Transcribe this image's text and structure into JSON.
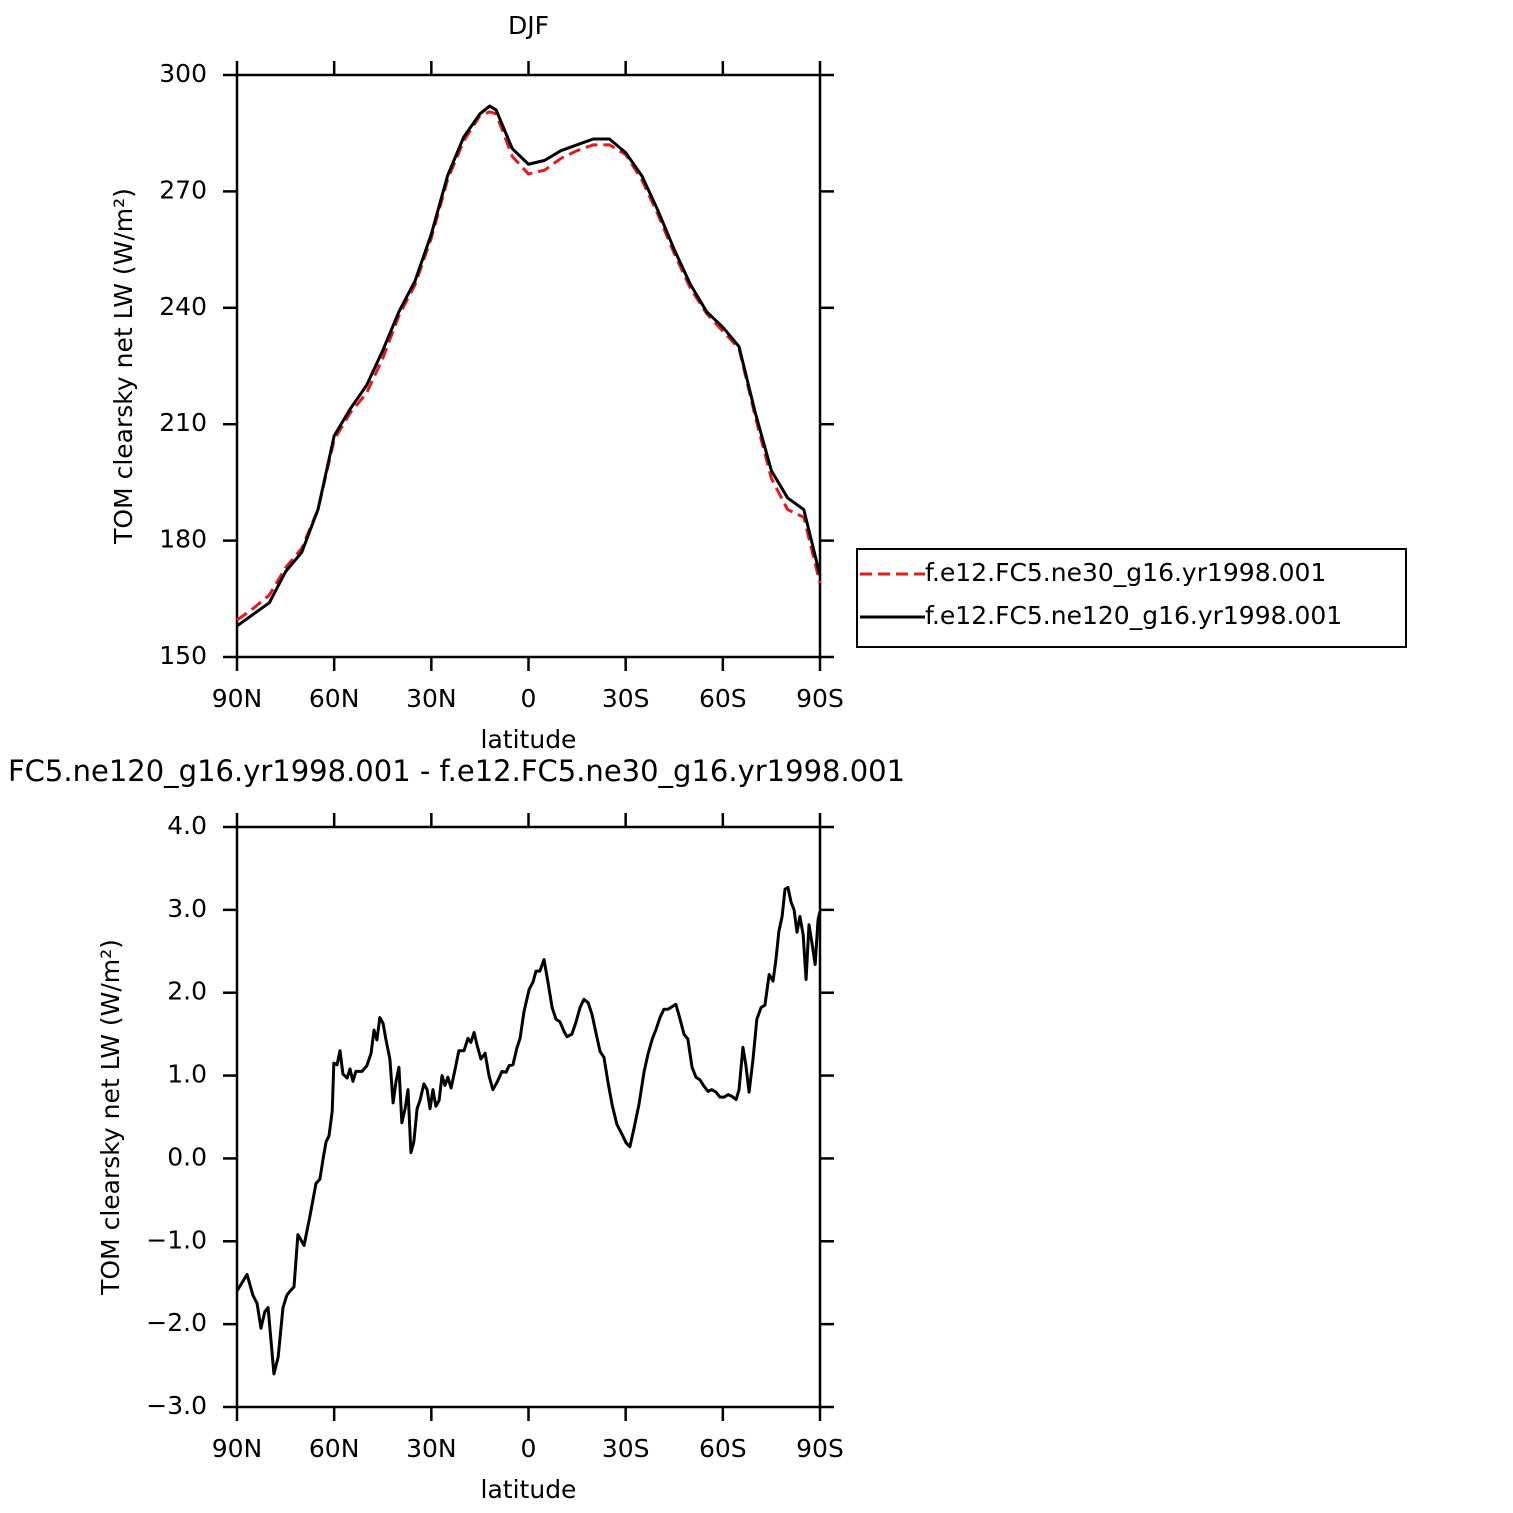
{
  "chart_data": [
    {
      "type": "line",
      "title": "DJF",
      "xlabel": "latitude",
      "ylabel": "TOM clearsky net LW (W/m²)",
      "xlim": [
        90,
        -90
      ],
      "xticks": [
        {
          "value": 90,
          "label": "90N"
        },
        {
          "value": 60,
          "label": "60N"
        },
        {
          "value": 30,
          "label": "30N"
        },
        0,
        {
          "value": -30,
          "label": "30S"
        },
        {
          "value": -60,
          "label": "60S"
        },
        {
          "value": -90,
          "label": "90S"
        }
      ],
      "ylim": [
        150,
        300
      ],
      "yticks": [
        150,
        180,
        210,
        240,
        270,
        300
      ],
      "legend": "right",
      "x": [
        90,
        85,
        80,
        75,
        70,
        65,
        60,
        55,
        50,
        45,
        40,
        35,
        30,
        25,
        20,
        15,
        12,
        10,
        5,
        0,
        -5,
        -10,
        -15,
        -20,
        -25,
        -30,
        -35,
        -40,
        -45,
        -50,
        -55,
        -60,
        -65,
        -70,
        -75,
        -80,
        -85,
        -90
      ],
      "series": [
        {
          "name": "f.e12.FC5.ne30_g16.yr1998.001",
          "color": "#e41a1c",
          "line_style": "dashed",
          "values": [
            159.5,
            162.5,
            166,
            173,
            178,
            188,
            206,
            213,
            218,
            227,
            238,
            246,
            258,
            273,
            283,
            289.5,
            290.5,
            290,
            279,
            274.5,
            275.5,
            278.5,
            280.5,
            282,
            282,
            279.5,
            273,
            264,
            254,
            245,
            238.5,
            234,
            229.5,
            212,
            196,
            188,
            186,
            169
          ]
        },
        {
          "name": "f.e12.FC5.ne120_g16.yr1998.001",
          "color": "#000000",
          "line_style": "solid",
          "values": [
            158,
            161,
            164,
            172,
            177,
            188,
            207,
            214,
            220,
            229,
            239,
            247,
            259,
            274,
            284,
            290,
            292,
            291,
            281,
            277,
            278,
            280.5,
            282,
            283.5,
            283.5,
            280,
            274,
            265,
            255,
            246,
            239,
            235,
            230,
            213,
            198,
            191,
            188,
            171
          ]
        }
      ]
    },
    {
      "type": "line",
      "title": "FC5.ne120_g16.yr1998.001 - f.e12.FC5.ne30_g16.yr1998.001",
      "xlabel": "latitude",
      "ylabel": "TOM clearsky net LW (W/m²)",
      "xlim": [
        90,
        -90
      ],
      "xticks": [
        {
          "value": 90,
          "label": "90N"
        },
        {
          "value": 60,
          "label": "60N"
        },
        {
          "value": 30,
          "label": "30N"
        },
        0,
        {
          "value": -30,
          "label": "30S"
        },
        {
          "value": -60,
          "label": "60S"
        },
        {
          "value": -90,
          "label": "90S"
        }
      ],
      "ylim": [
        -3,
        4
      ],
      "yticks": [
        {
          "value": -3,
          "label": "−3.0"
        },
        {
          "value": -2,
          "label": "−2.0"
        },
        {
          "value": -1,
          "label": "−1.0"
        },
        {
          "value": 0,
          "label": "0.0"
        },
        {
          "value": 1,
          "label": "1.0"
        },
        {
          "value": 2,
          "label": "2.0"
        },
        {
          "value": 3,
          "label": "3.0"
        },
        {
          "value": 4,
          "label": "4.0"
        }
      ],
      "color": "#000000",
      "x": [
        90,
        86.9,
        85.1,
        83.8,
        82.6,
        81.4,
        80.4,
        78.6,
        77.3,
        75.8,
        74.6,
        73.6,
        72.4,
        71.2,
        69.3,
        67.5,
        65.6,
        64.4,
        63.4,
        62.5,
        61.6,
        60.6,
        60.1,
        59.1,
        58.2,
        57.3,
        56.0,
        55.1,
        54.2,
        53.3,
        51.4,
        49.9,
        48.6,
        47.7,
        46.8,
        45.9,
        44.9,
        44.0,
        42.8,
        41.8,
        40.9,
        40.0,
        39.1,
        38.1,
        37.2,
        36.3,
        35.4,
        34.4,
        33.5,
        32.3,
        31.3,
        30.4,
        29.5,
        28.6,
        27.6,
        26.7,
        25.8,
        24.9,
        23.9,
        22.7,
        21.5,
        19.9,
        18.7,
        17.8,
        16.8,
        15.9,
        14.7,
        13.4,
        12.2,
        11.0,
        9.7,
        8.2,
        6.9,
        6.0,
        4.8,
        3.6,
        2.6,
        1.4,
        -0.2,
        -1.4,
        -2.3,
        -3.5,
        -4.8,
        -6.0,
        -7.3,
        -8.5,
        -9.7,
        -11.0,
        -11.9,
        -13.4,
        -14.7,
        -15.9,
        -17.1,
        -18.4,
        -19.6,
        -20.8,
        -22.1,
        -23.3,
        -24.5,
        -25.8,
        -27.3,
        -28.9,
        -30.1,
        -31.3,
        -32.5,
        -34.1,
        -35.7,
        -36.9,
        -38.2,
        -39.4,
        -40.6,
        -41.8,
        -43.1,
        -44.3,
        -45.5,
        -46.8,
        -48.0,
        -49.2,
        -50.5,
        -51.7,
        -52.9,
        -54.2,
        -55.4,
        -56.6,
        -57.9,
        -59.1,
        -60.4,
        -61.6,
        -62.8,
        -64.1,
        -65.0,
        -66.2,
        -67.1,
        -68.1,
        -69.3,
        -70.5,
        -71.8,
        -73.0,
        -74.3,
        -75.5,
        -76.4,
        -77.3,
        -78.3,
        -79.2,
        -80.1,
        -81.1,
        -82.0,
        -82.9,
        -83.8,
        -84.8,
        -85.7,
        -86.6,
        -87.6,
        -88.5,
        -89.4,
        -90
      ],
      "values": [
        -1.6,
        -1.4,
        -1.65,
        -1.75,
        -2.05,
        -1.85,
        -1.8,
        -2.6,
        -2.4,
        -1.8,
        -1.65,
        -1.6,
        -1.55,
        -0.92,
        -1.05,
        -0.7,
        -0.3,
        -0.25,
        0.0,
        0.2,
        0.27,
        0.57,
        1.15,
        1.13,
        1.3,
        1.02,
        0.97,
        1.08,
        0.93,
        1.05,
        1.05,
        1.12,
        1.27,
        1.55,
        1.43,
        1.7,
        1.63,
        1.43,
        1.2,
        0.67,
        0.93,
        1.1,
        0.43,
        0.6,
        0.83,
        0.07,
        0.2,
        0.6,
        0.7,
        0.9,
        0.83,
        0.6,
        0.83,
        0.63,
        0.7,
        1.0,
        0.88,
        0.98,
        0.85,
        1.07,
        1.3,
        1.3,
        1.45,
        1.4,
        1.52,
        1.37,
        1.2,
        1.27,
        1.0,
        0.83,
        0.92,
        1.05,
        1.04,
        1.12,
        1.13,
        1.33,
        1.45,
        1.77,
        2.04,
        2.13,
        2.26,
        2.26,
        2.4,
        2.13,
        1.82,
        1.68,
        1.65,
        1.53,
        1.47,
        1.5,
        1.65,
        1.82,
        1.92,
        1.88,
        1.74,
        1.52,
        1.29,
        1.22,
        0.93,
        0.65,
        0.41,
        0.29,
        0.19,
        0.14,
        0.35,
        0.65,
        1.05,
        1.26,
        1.44,
        1.56,
        1.7,
        1.8,
        1.8,
        1.83,
        1.86,
        1.68,
        1.5,
        1.44,
        1.1,
        0.98,
        0.95,
        0.87,
        0.81,
        0.83,
        0.8,
        0.74,
        0.74,
        0.77,
        0.75,
        0.71,
        0.83,
        1.34,
        1.13,
        0.8,
        1.19,
        1.68,
        1.82,
        1.85,
        2.22,
        2.14,
        2.4,
        2.74,
        2.92,
        3.25,
        3.27,
        3.09,
        3.0,
        2.73,
        2.92,
        2.7,
        2.16,
        2.82,
        2.58,
        2.34,
        2.88,
        2.98
      ]
    }
  ]
}
